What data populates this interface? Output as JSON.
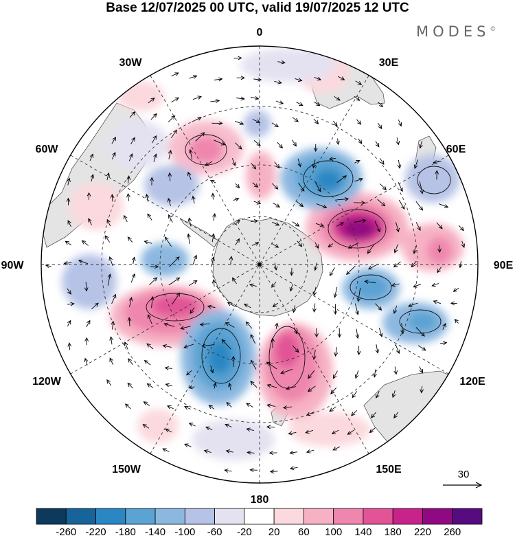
{
  "title": "Base 12/07/2025 00 UTC, valid 19/07/2025 12 UTC",
  "brand": "MODES",
  "brand_mark": "©",
  "map": {
    "projection": "south polar stereographic",
    "longitude_labels": [
      "0",
      "30E",
      "60E",
      "90E",
      "120E",
      "150E",
      "180",
      "150W",
      "120W",
      "90W",
      "60W",
      "30W"
    ],
    "vector_reference_label": "30"
  },
  "colorbar": {
    "tick_labels": [
      "-260",
      "-220",
      "-180",
      "-140",
      "-100",
      "-60",
      "-20",
      "20",
      "60",
      "100",
      "140",
      "180",
      "220",
      "260"
    ],
    "colors": [
      "#0d3a5c",
      "#17649a",
      "#2b87c3",
      "#5aa3d3",
      "#8cb8e0",
      "#b6c3e6",
      "#e4e2f1",
      "#ffffff",
      "#fbd9de",
      "#f6b2c4",
      "#ef86ad",
      "#e15596",
      "#c8238a",
      "#8f0a80",
      "#560b7e"
    ]
  }
}
